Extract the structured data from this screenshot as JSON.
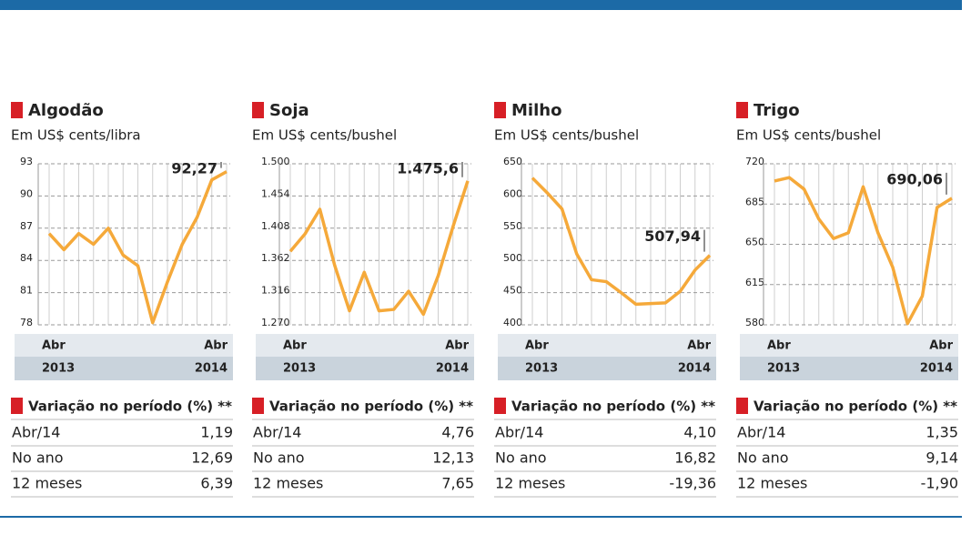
{
  "chart_data": [
    {
      "type": "line",
      "title": "Algodão",
      "subtitle": "Em US$ cents/libra",
      "color": "#f5a93a",
      "categories": [
        "Abr",
        null,
        null,
        null,
        null,
        null,
        null,
        null,
        null,
        null,
        null,
        null,
        "Abr"
      ],
      "years": [
        "2013",
        "2014"
      ],
      "values": [
        86.5,
        85,
        86.5,
        85.5,
        87,
        84.5,
        83.5,
        78.2,
        82,
        85.5,
        88,
        91.5,
        92.27
      ],
      "last_label": "92,27",
      "ylim": [
        78,
        93
      ],
      "yticks": [
        78,
        81,
        84,
        87,
        90,
        93
      ],
      "grid": true
    },
    {
      "type": "line",
      "title": "Soja",
      "subtitle": "Em US$ cents/bushel",
      "color": "#f5a93a",
      "categories": [
        "Abr",
        null,
        null,
        null,
        null,
        null,
        null,
        null,
        null,
        null,
        null,
        null,
        "Abr"
      ],
      "years": [
        "2013",
        "2014"
      ],
      "values": [
        1375,
        1400,
        1435,
        1355,
        1290,
        1345,
        1290,
        1292,
        1318,
        1285,
        1340,
        1410,
        1475.6
      ],
      "last_label": "1.475,6",
      "ylim": [
        1270,
        1500
      ],
      "yticks": [
        {
          "value": 1270,
          "label": "1.270"
        },
        {
          "value": 1316,
          "label": "1.316"
        },
        {
          "value": 1362,
          "label": "1.362"
        },
        {
          "value": 1408,
          "label": "1.408"
        },
        {
          "value": 1454,
          "label": "1.454"
        },
        {
          "value": 1500,
          "label": "1.500"
        }
      ],
      "grid": true
    },
    {
      "type": "line",
      "title": "Milho",
      "subtitle": "Em US$ cents/bushel",
      "color": "#f5a93a",
      "categories": [
        "Abr",
        null,
        null,
        null,
        null,
        null,
        null,
        null,
        null,
        null,
        null,
        null,
        "Abr"
      ],
      "years": [
        "2013",
        "2014"
      ],
      "values": [
        628,
        605,
        580,
        510,
        470,
        467,
        450,
        432,
        433,
        434,
        452,
        485,
        507.94
      ],
      "last_label": "507,94",
      "ylim": [
        400,
        650
      ],
      "yticks": [
        400,
        450,
        500,
        550,
        600,
        650
      ],
      "grid": true
    },
    {
      "type": "line",
      "title": "Trigo",
      "subtitle": "Em US$ cents/bushel",
      "color": "#f5a93a",
      "categories": [
        "Abr",
        null,
        null,
        null,
        null,
        null,
        null,
        null,
        null,
        null,
        null,
        null,
        "Abr"
      ],
      "years": [
        "2013",
        "2014"
      ],
      "values": [
        705,
        708,
        698,
        672,
        655,
        660,
        700,
        660,
        630,
        581,
        605,
        682,
        690.06
      ],
      "last_label": "690,06",
      "ylim": [
        580,
        720
      ],
      "yticks": [
        580,
        615,
        650,
        685,
        720
      ],
      "grid": true
    }
  ],
  "variation": [
    {
      "title": "Variação no período (%) **",
      "rows": [
        [
          "Abr/14",
          "1,19"
        ],
        [
          "No ano",
          "12,69"
        ],
        [
          "12 meses",
          "6,39"
        ]
      ]
    },
    {
      "title": "Variação no período (%) **",
      "rows": [
        [
          "Abr/14",
          "4,76"
        ],
        [
          "No ano",
          "12,13"
        ],
        [
          "12 meses",
          "7,65"
        ]
      ]
    },
    {
      "title": "Variação no período (%) **",
      "rows": [
        [
          "Abr/14",
          "4,10"
        ],
        [
          "No ano",
          "16,82"
        ],
        [
          "12 meses",
          "-19,36"
        ]
      ]
    },
    {
      "title": "Variação no período (%) **",
      "rows": [
        [
          "Abr/14",
          "1,35"
        ],
        [
          "No ano",
          "9,14"
        ],
        [
          "12 meses",
          "-1,90"
        ]
      ]
    }
  ]
}
